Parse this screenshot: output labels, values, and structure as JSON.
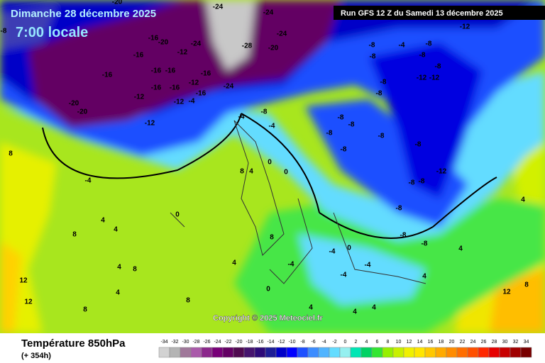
{
  "header": {
    "title": "Dimanche 28 décembre 2025",
    "subtitle": "7:00 locale",
    "run": "Run GFS 12 Z du Samedi 13 décembre 2025"
  },
  "map": {
    "copyright": "Copyright © 2025 Meteociel.fr",
    "contour_labels": [
      "-20",
      "-24",
      "-24",
      "-8",
      "-16",
      "-20",
      "-24",
      "-28",
      "-20",
      "-24",
      "-12",
      "-16",
      "-12",
      "-16",
      "-16",
      "-16",
      "-16",
      "-12",
      "-16",
      "-16",
      "-12",
      "-24",
      "-16",
      "-12",
      "-4",
      "-20",
      "-20",
      "-12",
      "-8",
      "-4",
      "-8",
      "-8",
      "-8",
      "-8",
      "-12",
      "-12",
      "-8",
      "-8",
      "-4",
      "-8",
      "-4",
      "-8",
      "-8",
      "-8",
      "-8",
      "-8",
      "-8",
      "-12",
      "0",
      "8",
      "-4",
      "8",
      "0",
      "4",
      "-8",
      "-8",
      "0",
      "4",
      "8",
      "4",
      "8",
      "-8",
      "-8",
      "-8",
      "4",
      "-4",
      "0",
      "-4",
      "-4",
      "4",
      "-4",
      "4",
      "8",
      "4",
      "0",
      "4",
      "12",
      "12",
      "8",
      "4",
      "12",
      "8",
      "4",
      "8",
      "4",
      "4"
    ]
  },
  "legend": {
    "title": "Température 850hPa",
    "lead": "(+ 354h)",
    "values": [
      -34,
      -32,
      -30,
      -28,
      -26,
      -24,
      -22,
      -20,
      -18,
      -16,
      -14,
      -12,
      -10,
      -8,
      -6,
      -4,
      -2,
      0,
      2,
      4,
      6,
      8,
      10,
      12,
      14,
      16,
      18,
      20,
      22,
      24,
      26,
      28,
      30,
      32,
      34
    ],
    "colors": [
      "#d2d2d2",
      "#b4b4b4",
      "#a0789a",
      "#aa5aaa",
      "#8c288c",
      "#780078",
      "#640064",
      "#500a50",
      "#46146e",
      "#2d0a78",
      "#1e1e96",
      "#0000c8",
      "#0000ff",
      "#1e50ff",
      "#3c8cff",
      "#50b4ff",
      "#64dcff",
      "#96f0f0",
      "#00e6b4",
      "#00d264",
      "#32e632",
      "#96f000",
      "#c8f000",
      "#f0f000",
      "#ffe600",
      "#ffc800",
      "#ffaa00",
      "#ff8c00",
      "#ff6e00",
      "#ff5000",
      "#ff2800",
      "#e60000",
      "#c80000",
      "#a00000",
      "#780000"
    ]
  }
}
